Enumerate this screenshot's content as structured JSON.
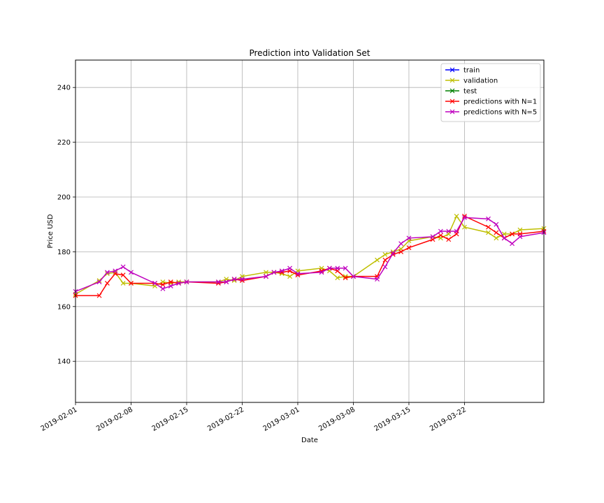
{
  "chart_data": {
    "type": "line",
    "title": "Prediction into Validation Set",
    "xlabel": "Date",
    "ylabel": "Price USD",
    "grid": true,
    "legend_position": "top-right",
    "xlim": [
      "2019-02-01",
      "2019-04-01"
    ],
    "ylim": [
      125,
      250
    ],
    "xticks": [
      "2019-02-01",
      "2019-02-08",
      "2019-02-15",
      "2019-02-22",
      "2019-03-01",
      "2019-03-08",
      "2019-03-15",
      "2019-03-22"
    ],
    "yticks": [
      140,
      160,
      180,
      200,
      220,
      240
    ],
    "series": [
      {
        "name": "train",
        "color": "#0000ff",
        "marker": "x",
        "x": [],
        "y": []
      },
      {
        "name": "validation",
        "color": "#bfbf00",
        "marker": "x",
        "x": [
          "2019-02-01",
          "2019-02-04",
          "2019-02-05",
          "2019-02-06",
          "2019-02-07",
          "2019-02-08",
          "2019-02-11",
          "2019-02-12",
          "2019-02-13",
          "2019-02-14",
          "2019-02-15",
          "2019-02-19",
          "2019-02-20",
          "2019-02-21",
          "2019-02-22",
          "2019-02-25",
          "2019-02-26",
          "2019-02-27",
          "2019-02-28",
          "2019-03-01",
          "2019-03-04",
          "2019-03-05",
          "2019-03-06",
          "2019-03-07",
          "2019-03-08",
          "2019-03-11",
          "2019-03-12",
          "2019-03-13",
          "2019-03-14",
          "2019-03-15",
          "2019-03-18",
          "2019-03-19",
          "2019-03-20",
          "2019-03-21",
          "2019-03-22",
          "2019-03-25",
          "2019-03-26",
          "2019-03-27",
          "2019-03-28",
          "2019-03-29",
          "2019-04-01"
        ],
        "y": [
          164.5,
          169.5,
          172.0,
          172.5,
          168.5,
          168.5,
          167.5,
          169.0,
          168.5,
          169.0,
          169.0,
          169.0,
          170.0,
          169.5,
          171.0,
          172.5,
          172.5,
          172.0,
          171.0,
          173.0,
          174.0,
          173.0,
          170.5,
          171.0,
          171.0,
          177.0,
          179.0,
          180.0,
          181.0,
          184.0,
          185.5,
          185.0,
          186.5,
          193.0,
          189.0,
          187.0,
          185.0,
          186.5,
          186.5,
          188.0,
          188.5
        ]
      },
      {
        "name": "test",
        "color": "#008000",
        "marker": "x",
        "x": [],
        "y": []
      },
      {
        "name": "predictions with N=1",
        "color": "#ff0000",
        "marker": "x",
        "x": [
          "2019-02-01",
          "2019-02-04",
          "2019-02-05",
          "2019-02-06",
          "2019-02-07",
          "2019-02-08",
          "2019-02-11",
          "2019-02-12",
          "2019-02-13",
          "2019-02-14",
          "2019-02-15",
          "2019-02-19",
          "2019-02-20",
          "2019-02-21",
          "2019-02-22",
          "2019-02-25",
          "2019-02-26",
          "2019-02-27",
          "2019-02-28",
          "2019-03-01",
          "2019-03-04",
          "2019-03-05",
          "2019-03-06",
          "2019-03-07",
          "2019-03-08",
          "2019-03-11",
          "2019-03-12",
          "2019-03-13",
          "2019-03-14",
          "2019-03-15",
          "2019-03-18",
          "2019-03-19",
          "2019-03-20",
          "2019-03-21",
          "2019-03-22",
          "2019-03-25",
          "2019-03-26",
          "2019-03-27",
          "2019-03-28",
          "2019-03-29",
          "2019-04-01"
        ],
        "y": [
          164.0,
          164.0,
          168.5,
          172.0,
          171.5,
          168.5,
          168.5,
          168.0,
          169.0,
          168.5,
          169.0,
          168.5,
          169.0,
          170.0,
          169.5,
          171.0,
          172.5,
          172.5,
          173.0,
          171.5,
          173.0,
          174.0,
          173.0,
          170.5,
          171.0,
          171.0,
          177.0,
          179.0,
          180.0,
          181.5,
          184.5,
          186.0,
          184.5,
          186.5,
          193.0,
          189.0,
          187.0,
          185.0,
          186.5,
          186.5,
          187.5
        ]
      },
      {
        "name": "predictions with N=5",
        "color": "#bf00bf",
        "marker": "x",
        "x": [
          "2019-02-01",
          "2019-02-04",
          "2019-02-05",
          "2019-02-06",
          "2019-02-07",
          "2019-02-08",
          "2019-02-11",
          "2019-02-12",
          "2019-02-13",
          "2019-02-14",
          "2019-02-15",
          "2019-02-19",
          "2019-02-20",
          "2019-02-21",
          "2019-02-22",
          "2019-02-25",
          "2019-02-26",
          "2019-02-27",
          "2019-02-28",
          "2019-03-01",
          "2019-03-04",
          "2019-03-05",
          "2019-03-06",
          "2019-03-07",
          "2019-03-08",
          "2019-03-11",
          "2019-03-12",
          "2019-03-13",
          "2019-03-14",
          "2019-03-15",
          "2019-03-18",
          "2019-03-19",
          "2019-03-20",
          "2019-03-21",
          "2019-03-22",
          "2019-03-25",
          "2019-03-26",
          "2019-03-27",
          "2019-03-28",
          "2019-03-29",
          "2019-04-01"
        ],
        "y": [
          165.5,
          169.0,
          172.5,
          173.0,
          174.5,
          172.5,
          168.5,
          166.5,
          167.5,
          168.5,
          169.0,
          169.0,
          169.0,
          170.0,
          170.0,
          171.0,
          172.5,
          173.0,
          174.0,
          172.0,
          172.5,
          174.0,
          174.0,
          174.0,
          171.0,
          170.0,
          174.5,
          179.5,
          183.0,
          185.0,
          185.5,
          187.5,
          187.5,
          187.5,
          192.5,
          192.0,
          190.0,
          185.0,
          183.0,
          185.5,
          187.0
        ]
      }
    ]
  }
}
